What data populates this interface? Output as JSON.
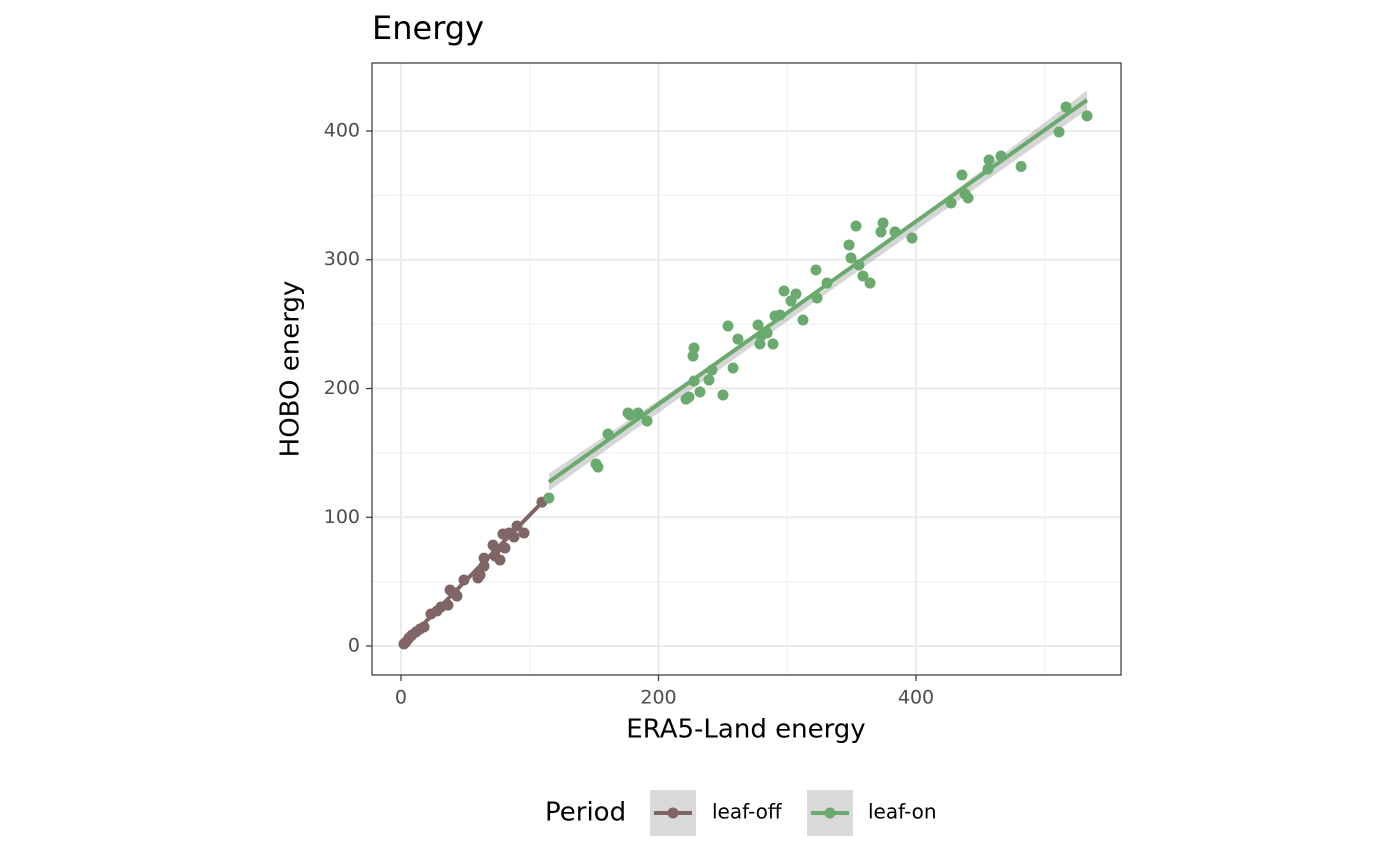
{
  "chart_data": {
    "type": "scatter",
    "title": "Energy",
    "x_label": "ERA5-Land energy",
    "y_label": "HOBO energy",
    "legend_title": "Period",
    "legend_position": "bottom",
    "grid": true,
    "xlim": [
      -22.5,
      559.2
    ],
    "ylim": [
      -22.5,
      452.8
    ],
    "xticks": [
      0,
      200,
      400
    ],
    "yticks": [
      0,
      100,
      200,
      300,
      400
    ],
    "xminor": [
      100,
      300,
      500
    ],
    "yminor": [
      50,
      150,
      250,
      350
    ],
    "series": [
      {
        "name": "leaf-off",
        "color": "#806566",
        "x": [
          2.3,
          3.9,
          6.2,
          8.5,
          11.7,
          14.8,
          17.9,
          23.3,
          28.0,
          31.1,
          36.5,
          38.1,
          41.9,
          43.5,
          48.9,
          59.8,
          61.4,
          64.5,
          64.5,
          71.5,
          73.8,
          73.0,
          76.9,
          79.2,
          80.8,
          83.9,
          87.8,
          90.1,
          95.5,
          109.5
        ],
        "values": [
          1.6,
          3.1,
          6.2,
          8.5,
          10.9,
          13.2,
          14.8,
          24.9,
          27.2,
          30.3,
          31.8,
          43.5,
          41.2,
          38.8,
          51.3,
          52.8,
          55.1,
          62.1,
          68.3,
          78.4,
          75.3,
          69.9,
          66.8,
          87.0,
          76.1,
          87.8,
          84.7,
          93.2,
          87.8,
          111.8
        ],
        "fit": {
          "x": [
            2.3,
            109.5
          ],
          "y": [
            1.5,
            111.5
          ]
        },
        "band": {
          "x": [
            2.3,
            55,
            109.5
          ],
          "lower": [
            0.5,
            55.5,
            109.5
          ],
          "upper": [
            2.5,
            57.5,
            113.5
          ]
        }
      },
      {
        "name": "leaf-on",
        "color": "#6aaa6e",
        "x": [
          114.9,
          151.5,
          153.0,
          160.8,
          176.3,
          177.9,
          184.1,
          191.1,
          221.4,
          223.7,
          226.8,
          227.6,
          227.6,
          232.2,
          239.2,
          241.6,
          250.1,
          254.0,
          257.9,
          261.7,
          277.3,
          278.8,
          279.6,
          284.3,
          288.9,
          290.5,
          294.4,
          297.5,
          302.9,
          306.8,
          312.2,
          322.3,
          323.1,
          330.9,
          348.0,
          349.5,
          353.4,
          355.7,
          358.8,
          364.3,
          372.8,
          374.4,
          383.7,
          396.9,
          427.2,
          435.7,
          438.1,
          440.4,
          455.9,
          456.7,
          466.0,
          481.6,
          511.1,
          516.5,
          532.8
        ],
        "values": [
          115.0,
          141.4,
          139.0,
          164.7,
          181.0,
          179.4,
          181.0,
          174.8,
          191.8,
          193.4,
          225.2,
          231.5,
          205.8,
          197.3,
          206.6,
          214.4,
          195.0,
          248.5,
          215.9,
          238.4,
          249.3,
          234.6,
          240.8,
          243.1,
          234.6,
          256.3,
          257.1,
          275.7,
          268.0,
          273.4,
          253.2,
          292.0,
          270.3,
          281.9,
          311.5,
          301.4,
          326.2,
          295.9,
          287.4,
          281.9,
          321.6,
          328.5,
          321.6,
          316.9,
          344.1,
          365.8,
          351.1,
          348.0,
          370.5,
          377.5,
          380.6,
          372.4,
          399.2,
          418.6,
          411.7
        ],
        "fit": {
          "x": [
            114.9,
            532.8
          ],
          "y": [
            127.4,
            424.1
          ]
        },
        "band": {
          "x": [
            114.9,
            330,
            532.8
          ],
          "lower": [
            120.5,
            273.5,
            416.5
          ],
          "upper": [
            134.0,
            277.5,
            431.5
          ]
        }
      }
    ]
  }
}
